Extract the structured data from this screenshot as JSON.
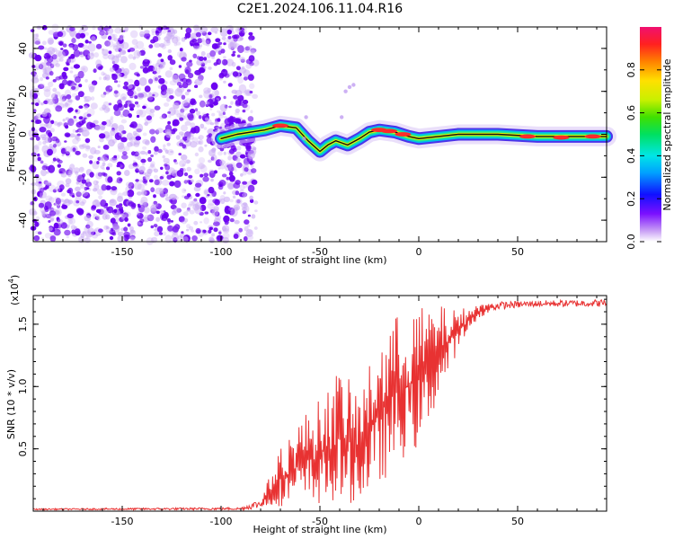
{
  "title": "C2E1.2024.106.11.04.R16",
  "colors": {
    "dots": "#6a00f0",
    "dots_light": "#c8a8f4",
    "snr_line": "#e83232",
    "axis": "#000000"
  },
  "chart_data": [
    {
      "type": "heatmap",
      "xlabel": "Height of straight line (km)",
      "ylabel": "Frequency (Hz)",
      "xlim": [
        -195,
        95
      ],
      "ylim": [
        -50,
        50
      ],
      "x_ticks": [
        -150,
        -100,
        -50,
        0,
        50
      ],
      "x_tick_labels": [
        "-150",
        "-100",
        "-50",
        "0",
        "50"
      ],
      "y_ticks": [
        -40,
        -20,
        0,
        20,
        40
      ],
      "y_tick_labels": [
        "-40",
        "-20",
        "0",
        "20",
        "40"
      ],
      "noise_region_x": [
        -195,
        -85
      ],
      "ridge_frequency": [
        {
          "x": -100,
          "y": -2
        },
        {
          "x": -92,
          "y": 0
        },
        {
          "x": -85,
          "y": 1
        },
        {
          "x": -78,
          "y": 2
        },
        {
          "x": -70,
          "y": 4
        },
        {
          "x": -62,
          "y": 3
        },
        {
          "x": -56,
          "y": -3
        },
        {
          "x": -50,
          "y": -8
        },
        {
          "x": -46,
          "y": -5
        },
        {
          "x": -42,
          "y": -3
        },
        {
          "x": -36,
          "y": -5
        },
        {
          "x": -30,
          "y": -2
        },
        {
          "x": -25,
          "y": 1
        },
        {
          "x": -20,
          "y": 2
        },
        {
          "x": -12,
          "y": 1
        },
        {
          "x": -5,
          "y": -1
        },
        {
          "x": 0,
          "y": -2
        },
        {
          "x": 10,
          "y": -1
        },
        {
          "x": 20,
          "y": 0
        },
        {
          "x": 40,
          "y": 0
        },
        {
          "x": 60,
          "y": -1
        },
        {
          "x": 80,
          "y": -1
        },
        {
          "x": 95,
          "y": -1
        }
      ],
      "colorbar": {
        "label": "Normalized spectral amplitude",
        "range": [
          0,
          1
        ],
        "ticks": [
          0.0,
          0.2,
          0.4,
          0.6,
          0.8
        ],
        "tick_labels": [
          "0.0",
          "0.2",
          "0.4",
          "0.6",
          "0.8"
        ]
      }
    },
    {
      "type": "line",
      "xlabel": "Height of straight line (km)",
      "ylabel": "SNR (10 * v/v)",
      "y_multiplier": "(x10",
      "y_multiplier_exp": "4",
      "xlim": [
        -195,
        95
      ],
      "ylim": [
        0.0,
        1.73
      ],
      "x_ticks": [
        -150,
        -100,
        -50,
        0,
        50
      ],
      "x_tick_labels": [
        "-150",
        "-100",
        "-50",
        "0",
        "50"
      ],
      "y_ticks": [
        0.5,
        1.0,
        1.5
      ],
      "y_tick_labels": [
        "0.5",
        "1.0",
        "1.5"
      ],
      "series": [
        {
          "envelope": [
            {
              "x": -195,
              "low": 0.01,
              "high": 0.02
            },
            {
              "x": -90,
              "low": 0.01,
              "high": 0.03
            },
            {
              "x": -80,
              "low": 0.02,
              "high": 0.1
            },
            {
              "x": -70,
              "low": 0.04,
              "high": 0.5
            },
            {
              "x": -60,
              "low": 0.05,
              "high": 0.75
            },
            {
              "x": -50,
              "low": 0.05,
              "high": 0.9
            },
            {
              "x": -40,
              "low": 0.05,
              "high": 1.15
            },
            {
              "x": -30,
              "low": 0.08,
              "high": 0.95
            },
            {
              "x": -20,
              "low": 0.2,
              "high": 1.4
            },
            {
              "x": -10,
              "low": 0.4,
              "high": 1.6
            },
            {
              "x": 0,
              "low": 0.5,
              "high": 1.64
            },
            {
              "x": 10,
              "low": 0.9,
              "high": 1.65
            },
            {
              "x": 20,
              "low": 1.3,
              "high": 1.62
            },
            {
              "x": 30,
              "low": 1.55,
              "high": 1.66
            },
            {
              "x": 40,
              "low": 1.62,
              "high": 1.68
            },
            {
              "x": 60,
              "low": 1.64,
              "high": 1.69
            },
            {
              "x": 95,
              "low": 1.64,
              "high": 1.7
            }
          ]
        }
      ]
    }
  ]
}
